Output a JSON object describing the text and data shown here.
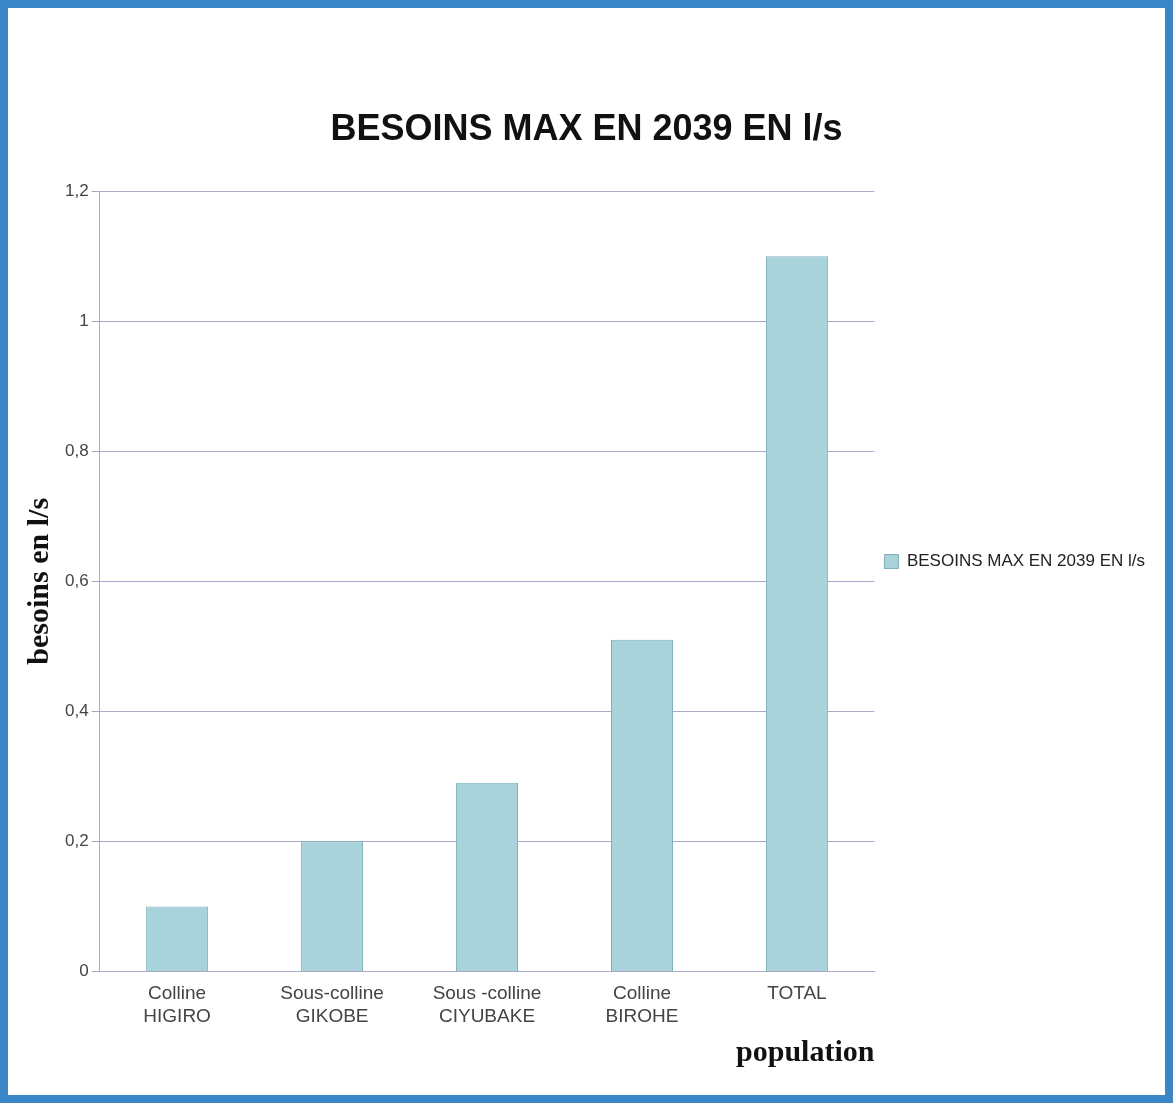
{
  "chart_data": {
    "type": "bar",
    "title": "BESOINS MAX EN 2039 EN l/s",
    "xlabel": "population",
    "ylabel": "besoins en l/s",
    "categories": [
      "Colline\nHIGIRO",
      "Sous-colline\nGIKOBE",
      "Sous -colline\nCIYUBAKE",
      "Colline\nBIROHE",
      "TOTAL"
    ],
    "series": [
      {
        "name": "BESOINS MAX EN 2039 EN l/s",
        "color": "#a8d3db",
        "values": [
          0.1,
          0.2,
          0.29,
          0.51,
          1.1
        ]
      }
    ],
    "ylim": [
      0,
      1.2
    ],
    "yticks": [
      0,
      {
        "value": 0.2,
        "label": "0,2"
      },
      {
        "value": 0.4,
        "label": "0,4"
      },
      {
        "value": 0.6,
        "label": "0,6"
      },
      {
        "value": 0.8,
        "label": "0,8"
      },
      1,
      {
        "value": 1.2,
        "label": "1,2"
      }
    ],
    "grid": "y",
    "legend": "right"
  }
}
